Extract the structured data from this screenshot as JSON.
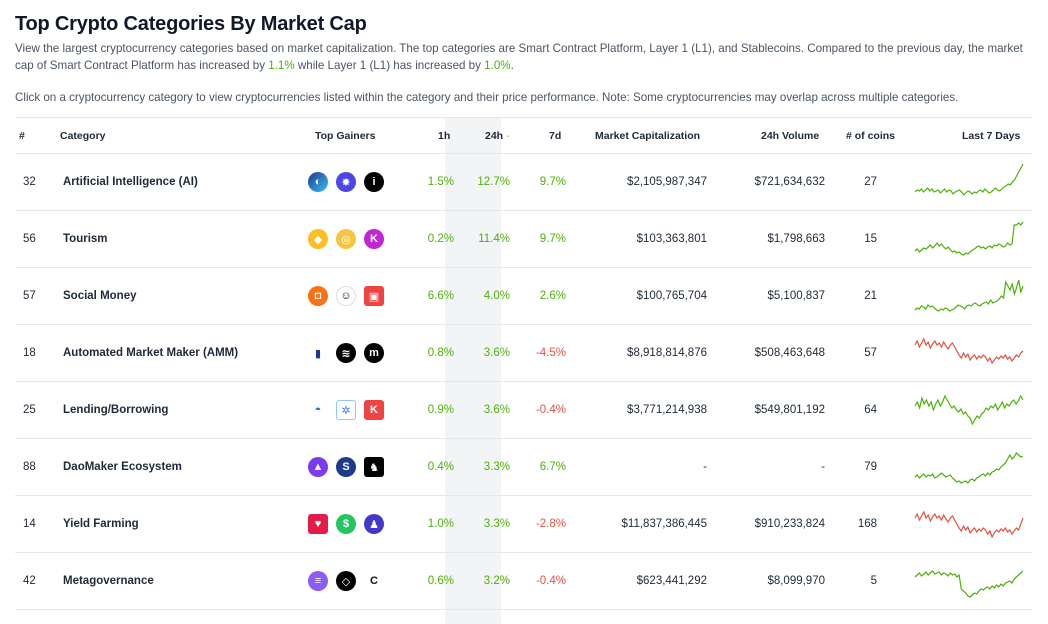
{
  "page": {
    "title": "Top Crypto Categories By Market Cap",
    "desc_pre": "View the largest cryptocurrency categories based on market capitalization. The top categories are Smart Contract Platform, Layer 1 (L1), and Stablecoins. Compared to the previous day, the market cap of Smart Contract Platform has increased by ",
    "desc_val1": "1.1%",
    "desc_mid": " while Layer 1 (L1) has increased by ",
    "desc_val2": "1.0%",
    "desc_post": ".",
    "note": "Click on a cryptocurrency category to view cryptocurrencies listed within the category and their price performance. Note: Some cryptocurrencies may overlap across multiple categories."
  },
  "columns": {
    "rank": "#",
    "category": "Category",
    "gainers": "Top Gainers",
    "h1": "1h",
    "h24": "24h",
    "sort_indicator": "-",
    "d7": "7d",
    "mcap": "Market Capitalization",
    "volume": "24h Volume",
    "coins": "# of coins",
    "last7": "Last 7 Days"
  },
  "colors": {
    "up": "#4eaf0a",
    "down": "#e15241"
  },
  "rows": [
    {
      "rank": "32",
      "name": "Artificial Intelligence (AI)",
      "h1": "1.5%",
      "h24": "12.7%",
      "d7": "9.7%",
      "mcap": "$2,105,987,347",
      "vol": "$721,634,632",
      "coins": "27",
      "trend": "up",
      "spark": [
        30,
        28,
        29,
        27,
        30,
        28,
        26,
        29,
        27,
        30,
        29,
        28,
        31,
        29,
        27,
        30,
        28,
        29,
        32,
        30,
        29,
        28,
        30,
        33,
        31,
        29,
        30,
        32,
        30,
        31,
        29,
        28,
        30,
        27,
        29,
        31,
        30,
        28,
        26,
        28,
        29,
        27,
        25,
        24,
        22,
        23,
        20,
        18,
        14,
        10,
        6,
        2
      ]
    },
    {
      "rank": "56",
      "name": "Tourism",
      "h1": "0.2%",
      "h24": "11.4%",
      "d7": "9.7%",
      "mcap": "$103,363,801",
      "vol": "$1,798,663",
      "coins": "15",
      "trend": "up",
      "spark": [
        32,
        30,
        33,
        31,
        29,
        30,
        28,
        26,
        29,
        27,
        24,
        27,
        25,
        28,
        30,
        28,
        31,
        33,
        32,
        34,
        33,
        35,
        36,
        34,
        35,
        33,
        31,
        30,
        28,
        27,
        29,
        28,
        30,
        28,
        27,
        29,
        26,
        27,
        25,
        26,
        28,
        27,
        24,
        26,
        25,
        6,
        6,
        4,
        6,
        3
      ]
    },
    {
      "rank": "57",
      "name": "Social Money",
      "h1": "6.6%",
      "h24": "4.0%",
      "d7": "2.6%",
      "mcap": "$100,765,704",
      "vol": "$5,100,837",
      "coins": "21",
      "trend": "up",
      "spark": [
        34,
        32,
        33,
        30,
        31,
        33,
        29,
        31,
        30,
        32,
        34,
        35,
        33,
        34,
        32,
        33,
        35,
        34,
        33,
        31,
        29,
        30,
        31,
        33,
        30,
        29,
        30,
        28,
        27,
        29,
        30,
        28,
        27,
        26,
        28,
        24,
        27,
        26,
        25,
        23,
        20,
        22,
        6,
        10,
        14,
        8,
        18,
        12,
        4,
        16,
        10
      ]
    },
    {
      "rank": "18",
      "name": "Automated Market Maker (AMM)",
      "h1": "0.8%",
      "h24": "3.6%",
      "d7": "-4.5%",
      "mcap": "$8,918,814,876",
      "vol": "$508,463,648",
      "coins": "57",
      "trend": "down",
      "spark": [
        12,
        8,
        14,
        10,
        6,
        12,
        9,
        15,
        11,
        8,
        12,
        10,
        14,
        9,
        13,
        16,
        12,
        10,
        14,
        18,
        22,
        25,
        20,
        24,
        21,
        27,
        24,
        22,
        26,
        23,
        25,
        22,
        24,
        28,
        25,
        30,
        27,
        24,
        26,
        23,
        25,
        22,
        26,
        24,
        28,
        25,
        22,
        24,
        20,
        18
      ]
    },
    {
      "rank": "25",
      "name": "Lending/Borrowing",
      "h1": "0.9%",
      "h24": "3.6%",
      "d7": "-0.4%",
      "mcap": "$3,771,214,938",
      "vol": "$549,801,192",
      "coins": "64",
      "trend": "up",
      "spark": [
        16,
        12,
        18,
        8,
        14,
        10,
        16,
        12,
        20,
        14,
        10,
        16,
        12,
        6,
        10,
        14,
        18,
        16,
        20,
        22,
        19,
        24,
        22,
        26,
        28,
        34,
        30,
        26,
        28,
        24,
        22,
        18,
        20,
        16,
        18,
        14,
        20,
        16,
        12,
        18,
        14,
        16,
        12,
        10,
        14,
        11,
        6,
        10
      ]
    },
    {
      "rank": "88",
      "name": "DaoMaker Ecosystem",
      "h1": "0.4%",
      "h24": "3.3%",
      "d7": "6.7%",
      "mcap": "-",
      "vol": "-",
      "coins": "79",
      "trend": "up",
      "spark": [
        30,
        28,
        31,
        29,
        27,
        30,
        28,
        29,
        27,
        31,
        30,
        28,
        26,
        28,
        30,
        29,
        28,
        31,
        33,
        35,
        34,
        36,
        35,
        34,
        36,
        33,
        32,
        34,
        31,
        30,
        28,
        27,
        29,
        26,
        28,
        25,
        24,
        22,
        23,
        20,
        18,
        16,
        12,
        8,
        12,
        10,
        6,
        8,
        10,
        9
      ]
    },
    {
      "rank": "14",
      "name": "Yield Farming",
      "h1": "1.0%",
      "h24": "3.3%",
      "d7": "-2.8%",
      "mcap": "$11,837,386,445",
      "vol": "$910,233,824",
      "coins": "168",
      "trend": "down",
      "spark": [
        14,
        10,
        16,
        12,
        8,
        14,
        11,
        17,
        13,
        10,
        14,
        12,
        16,
        11,
        15,
        18,
        14,
        12,
        16,
        20,
        24,
        27,
        22,
        26,
        23,
        29,
        26,
        24,
        28,
        25,
        27,
        24,
        26,
        30,
        27,
        33,
        29,
        26,
        28,
        25,
        27,
        24,
        28,
        26,
        30,
        27,
        24,
        26,
        20,
        14
      ]
    },
    {
      "rank": "42",
      "name": "Metagovernance",
      "h1": "0.6%",
      "h24": "3.2%",
      "d7": "-0.4%",
      "mcap": "$623,441,292",
      "vol": "$8,099,970",
      "coins": "5",
      "trend": "up",
      "spark": [
        16,
        14,
        12,
        15,
        13,
        11,
        14,
        12,
        10,
        13,
        12,
        11,
        14,
        12,
        13,
        15,
        12,
        14,
        13,
        16,
        14,
        28,
        30,
        32,
        35,
        36,
        34,
        32,
        33,
        30,
        28,
        29,
        27,
        26,
        28,
        25,
        27,
        24,
        26,
        23,
        25,
        22,
        21,
        20,
        22,
        18,
        16,
        14,
        12,
        10
      ]
    }
  ]
}
